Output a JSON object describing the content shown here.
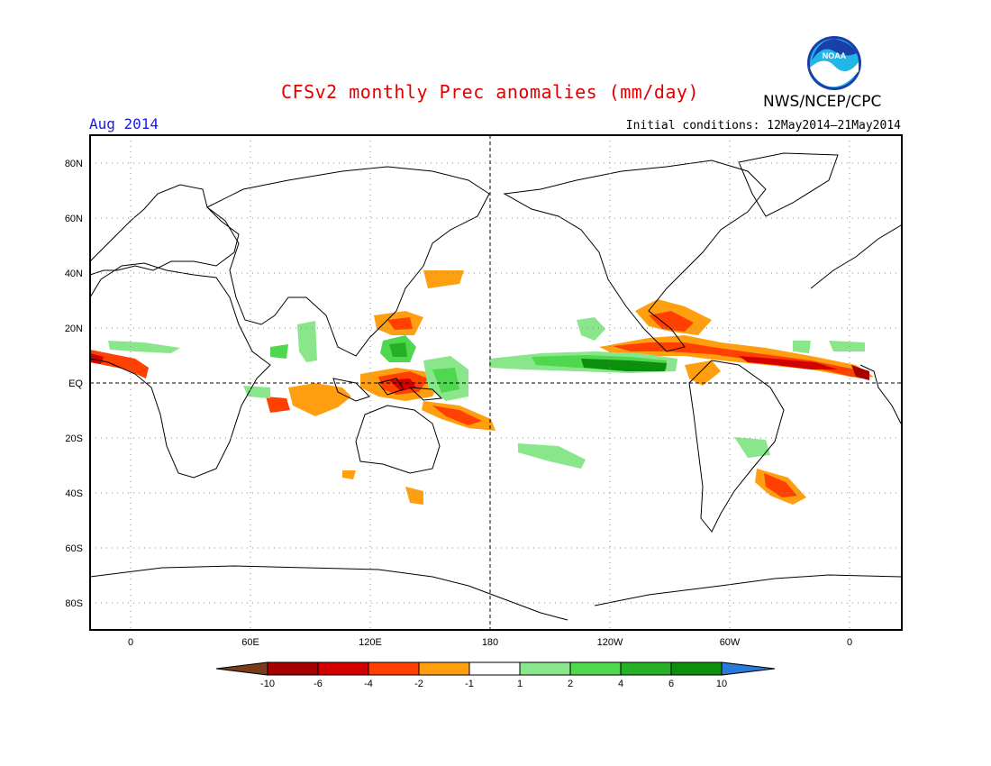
{
  "header": {
    "title": "CFSv2 monthly Prec anomalies (mm/day)",
    "agency": "NWS/NCEP/CPC",
    "month": "Aug 2014",
    "initial_conditions": "Initial conditions: 12May2014–21May2014",
    "logo_text": "NOAA"
  },
  "map": {
    "lat_labels": [
      "80N",
      "60N",
      "40N",
      "20N",
      "EQ",
      "20S",
      "40S",
      "60S",
      "80S"
    ],
    "lon_labels": [
      "0",
      "60E",
      "120E",
      "180",
      "120W",
      "60W",
      "0"
    ]
  },
  "colorbar": {
    "labels": [
      "-10",
      "-6",
      "-4",
      "-2",
      "-1",
      "1",
      "2",
      "4",
      "6",
      "10"
    ],
    "colors": [
      "#7a3b1c",
      "#a80000",
      "#d40000",
      "#ff4000",
      "#ff9f0f",
      "#ffffff",
      "#8ae68a",
      "#4fd84f",
      "#25b025",
      "#0c8f0c",
      "#2a7ad9"
    ]
  }
}
